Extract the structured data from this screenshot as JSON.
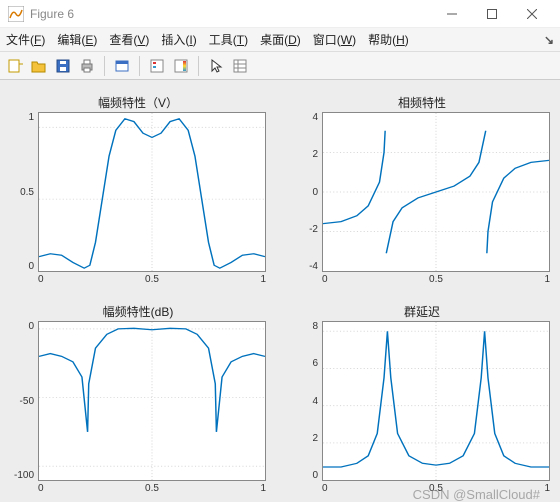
{
  "window": {
    "title": "Figure 6",
    "icon_plot_color": "#d97a00",
    "icon_bg": "#ffffff"
  },
  "menu": {
    "items": [
      {
        "label": "文件",
        "accel": "F"
      },
      {
        "label": "编辑",
        "accel": "E"
      },
      {
        "label": "查看",
        "accel": "V"
      },
      {
        "label": "插入",
        "accel": "I"
      },
      {
        "label": "工具",
        "accel": "T"
      },
      {
        "label": "桌面",
        "accel": "D"
      },
      {
        "label": "窗口",
        "accel": "W"
      },
      {
        "label": "帮助",
        "accel": "H"
      }
    ]
  },
  "toolbar": {
    "new_icon": "new-figure-icon",
    "open_icon": "open-icon",
    "save_icon": "save-icon",
    "print_icon": "print-icon",
    "inspect_icon": "inspect-icon",
    "legend_icon": "legend-icon",
    "colorbar_icon": "colorbar-icon",
    "pointer_icon": "pointer-icon",
    "property_icon": "property-icon"
  },
  "panels": [
    {
      "title": "幅频特性（V）",
      "type": "line",
      "line_color": "#0072bd",
      "bg": "#ffffff",
      "axis_color": "#888888",
      "grid_color": "#d9d9d9",
      "xlim": [
        0,
        1
      ],
      "xticks": [
        0,
        0.5,
        1
      ],
      "ylim": [
        0,
        1.1
      ],
      "yticks": [
        0,
        0.5,
        1
      ],
      "yticklabels": [
        "0",
        "0.5",
        "1"
      ],
      "series": [
        {
          "x": 0.0,
          "y": 0.1
        },
        {
          "x": 0.05,
          "y": 0.12
        },
        {
          "x": 0.1,
          "y": 0.11
        },
        {
          "x": 0.15,
          "y": 0.06
        },
        {
          "x": 0.2,
          "y": 0.02
        },
        {
          "x": 0.225,
          "y": 0.04
        },
        {
          "x": 0.25,
          "y": 0.2
        },
        {
          "x": 0.28,
          "y": 0.5
        },
        {
          "x": 0.31,
          "y": 0.8
        },
        {
          "x": 0.34,
          "y": 0.98
        },
        {
          "x": 0.38,
          "y": 1.06
        },
        {
          "x": 0.42,
          "y": 1.04
        },
        {
          "x": 0.46,
          "y": 0.96
        },
        {
          "x": 0.5,
          "y": 0.93
        },
        {
          "x": 0.54,
          "y": 0.96
        },
        {
          "x": 0.58,
          "y": 1.04
        },
        {
          "x": 0.62,
          "y": 1.06
        },
        {
          "x": 0.66,
          "y": 0.98
        },
        {
          "x": 0.69,
          "y": 0.8
        },
        {
          "x": 0.72,
          "y": 0.5
        },
        {
          "x": 0.75,
          "y": 0.2
        },
        {
          "x": 0.775,
          "y": 0.04
        },
        {
          "x": 0.8,
          "y": 0.02
        },
        {
          "x": 0.85,
          "y": 0.06
        },
        {
          "x": 0.9,
          "y": 0.11
        },
        {
          "x": 0.95,
          "y": 0.12
        },
        {
          "x": 1.0,
          "y": 0.1
        }
      ]
    },
    {
      "title": "相频特性",
      "type": "line",
      "line_color": "#0072bd",
      "bg": "#ffffff",
      "axis_color": "#888888",
      "grid_color": "#d9d9d9",
      "xlim": [
        0,
        1
      ],
      "xticks": [
        0,
        0.5,
        1
      ],
      "ylim": [
        -4,
        4
      ],
      "yticks": [
        -4,
        -2,
        0,
        2,
        4
      ],
      "yticklabels": [
        "-4",
        "-2",
        "0",
        "2",
        "4"
      ],
      "series": [
        {
          "x": 0.0,
          "y": -1.6
        },
        {
          "x": 0.08,
          "y": -1.5
        },
        {
          "x": 0.15,
          "y": -1.2
        },
        {
          "x": 0.2,
          "y": -0.7
        },
        {
          "x": 0.25,
          "y": 0.5
        },
        {
          "x": 0.27,
          "y": 2.0
        },
        {
          "x": 0.275,
          "y": 3.1
        },
        {
          "x": 0.28,
          "y": -3.1
        },
        {
          "x": 0.31,
          "y": -1.5
        },
        {
          "x": 0.35,
          "y": -0.8
        },
        {
          "x": 0.42,
          "y": -0.3
        },
        {
          "x": 0.5,
          "y": 0.0
        },
        {
          "x": 0.58,
          "y": 0.3
        },
        {
          "x": 0.65,
          "y": 0.8
        },
        {
          "x": 0.69,
          "y": 1.5
        },
        {
          "x": 0.72,
          "y": 3.1
        },
        {
          "x": 0.725,
          "y": -3.1
        },
        {
          "x": 0.73,
          "y": -2.0
        },
        {
          "x": 0.75,
          "y": -0.5
        },
        {
          "x": 0.8,
          "y": 0.7
        },
        {
          "x": 0.85,
          "y": 1.2
        },
        {
          "x": 0.92,
          "y": 1.5
        },
        {
          "x": 1.0,
          "y": 1.6
        }
      ],
      "breaks": [
        0.2775,
        0.7225
      ]
    },
    {
      "title": "幅频特性(dB)",
      "type": "line",
      "line_color": "#0072bd",
      "bg": "#ffffff",
      "axis_color": "#888888",
      "grid_color": "#d9d9d9",
      "xlim": [
        0,
        1
      ],
      "xticks": [
        0,
        0.5,
        1
      ],
      "ylim": [
        -110,
        5
      ],
      "yticks": [
        -100,
        -50,
        0
      ],
      "yticklabels": [
        "-100",
        "-50",
        "0"
      ],
      "series": [
        {
          "x": 0.0,
          "y": -20
        },
        {
          "x": 0.05,
          "y": -18
        },
        {
          "x": 0.1,
          "y": -20
        },
        {
          "x": 0.15,
          "y": -24
        },
        {
          "x": 0.19,
          "y": -35
        },
        {
          "x": 0.215,
          "y": -75
        },
        {
          "x": 0.22,
          "y": -40
        },
        {
          "x": 0.25,
          "y": -14
        },
        {
          "x": 0.3,
          "y": -4
        },
        {
          "x": 0.35,
          "y": 0
        },
        {
          "x": 0.42,
          "y": 0.4
        },
        {
          "x": 0.5,
          "y": -0.6
        },
        {
          "x": 0.58,
          "y": 0.4
        },
        {
          "x": 0.65,
          "y": 0
        },
        {
          "x": 0.7,
          "y": -4
        },
        {
          "x": 0.75,
          "y": -14
        },
        {
          "x": 0.78,
          "y": -40
        },
        {
          "x": 0.785,
          "y": -75
        },
        {
          "x": 0.81,
          "y": -35
        },
        {
          "x": 0.85,
          "y": -24
        },
        {
          "x": 0.9,
          "y": -20
        },
        {
          "x": 0.95,
          "y": -18
        },
        {
          "x": 1.0,
          "y": -20
        }
      ]
    },
    {
      "title": "群延迟",
      "type": "line",
      "line_color": "#0072bd",
      "bg": "#ffffff",
      "axis_color": "#888888",
      "grid_color": "#d9d9d9",
      "xlim": [
        0,
        1
      ],
      "xticks": [
        0,
        0.5,
        1
      ],
      "ylim": [
        0,
        8.5
      ],
      "yticks": [
        0,
        2,
        4,
        6,
        8
      ],
      "yticklabels": [
        "0",
        "2",
        "4",
        "6",
        "8"
      ],
      "series": [
        {
          "x": 0.0,
          "y": 0.7
        },
        {
          "x": 0.08,
          "y": 0.7
        },
        {
          "x": 0.15,
          "y": 0.9
        },
        {
          "x": 0.2,
          "y": 1.3
        },
        {
          "x": 0.24,
          "y": 2.5
        },
        {
          "x": 0.27,
          "y": 5.5
        },
        {
          "x": 0.285,
          "y": 8.0
        },
        {
          "x": 0.3,
          "y": 5.5
        },
        {
          "x": 0.33,
          "y": 2.5
        },
        {
          "x": 0.38,
          "y": 1.3
        },
        {
          "x": 0.44,
          "y": 0.9
        },
        {
          "x": 0.5,
          "y": 0.8
        },
        {
          "x": 0.56,
          "y": 0.9
        },
        {
          "x": 0.62,
          "y": 1.3
        },
        {
          "x": 0.67,
          "y": 2.5
        },
        {
          "x": 0.7,
          "y": 5.5
        },
        {
          "x": 0.715,
          "y": 8.0
        },
        {
          "x": 0.73,
          "y": 5.5
        },
        {
          "x": 0.76,
          "y": 2.5
        },
        {
          "x": 0.8,
          "y": 1.3
        },
        {
          "x": 0.85,
          "y": 0.9
        },
        {
          "x": 0.92,
          "y": 0.7
        },
        {
          "x": 1.0,
          "y": 0.7
        }
      ]
    }
  ],
  "watermark": "CSDN @SmallCloud#"
}
